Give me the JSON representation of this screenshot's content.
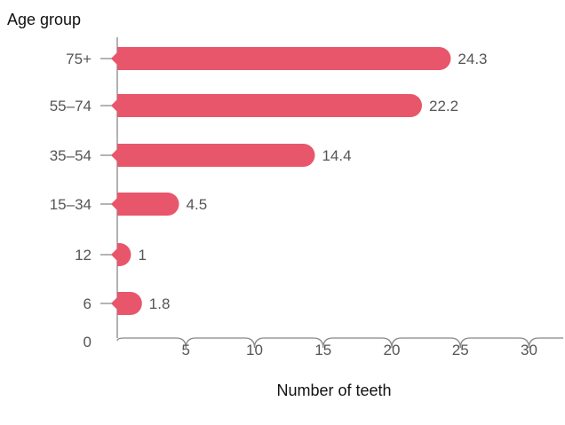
{
  "chart_data": {
    "type": "bar",
    "orientation": "horizontal",
    "categories": [
      "75+",
      "55–74",
      "35–54",
      "15–34",
      "12",
      "6"
    ],
    "values": [
      24.3,
      22.2,
      14.4,
      4.5,
      1,
      1.8
    ],
    "value_labels": [
      "24.3",
      "22.2",
      "14.4",
      "4.5",
      "1",
      "1.8"
    ],
    "xlabel": "Number of teeth",
    "ylabel": "Age group",
    "xlim": [
      0,
      30
    ],
    "x_ticks": [
      "5",
      "10",
      "15",
      "20",
      "25",
      "30"
    ],
    "zero_label": "0",
    "bar_color": "#e8566b",
    "axis_color": "#888888",
    "grid": false,
    "legend": "none"
  }
}
